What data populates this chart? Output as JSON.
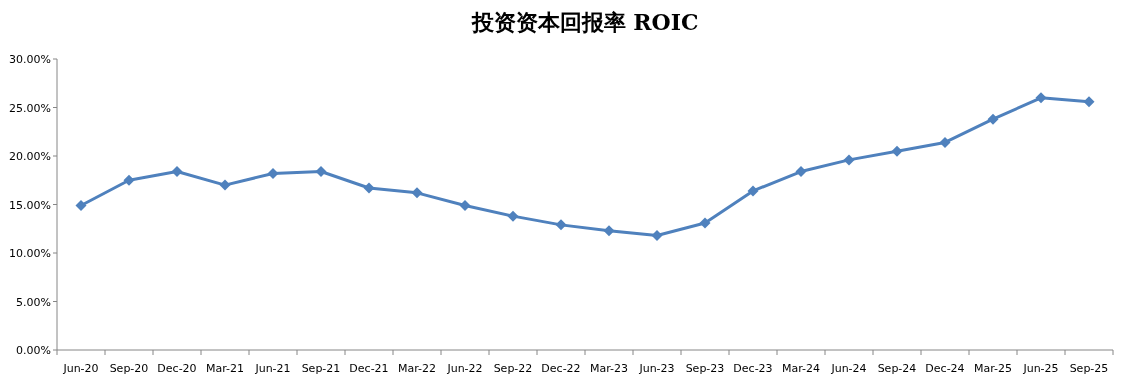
{
  "chart_data": {
    "type": "line",
    "title": "投资资本回报率 ROIC",
    "categories": [
      "Jun-20",
      "Sep-20",
      "Dec-20",
      "Mar-21",
      "Jun-21",
      "Sep-21",
      "Dec-21",
      "Mar-22",
      "Jun-22",
      "Sep-22",
      "Dec-22",
      "Mar-23",
      "Jun-23",
      "Sep-23",
      "Dec-23",
      "Mar-24",
      "Jun-24",
      "Sep-24",
      "Dec-24",
      "Mar-25",
      "Jun-25",
      "Sep-25"
    ],
    "series": [
      {
        "color": "#4f81bd",
        "values": [
          14.9,
          17.5,
          18.4,
          17.0,
          18.2,
          18.4,
          16.7,
          16.2,
          14.9,
          13.8,
          12.9,
          12.3,
          11.8,
          13.1,
          16.4,
          18.4,
          19.6,
          20.5,
          21.4,
          23.8,
          26.0,
          25.6
        ]
      }
    ],
    "ylim": [
      0,
      30
    ],
    "yticks": [
      {
        "value": 0,
        "label": "0.00%"
      },
      {
        "value": 5,
        "label": "5.00%"
      },
      {
        "value": 10,
        "label": "10.00%"
      },
      {
        "value": 15,
        "label": "15.00%"
      },
      {
        "value": 20,
        "label": "20.00%"
      },
      {
        "value": 25,
        "label": "25.00%"
      },
      {
        "value": 30,
        "label": "30.00%"
      }
    ],
    "grid": false,
    "marker": "diamond",
    "line_style": "solid"
  }
}
